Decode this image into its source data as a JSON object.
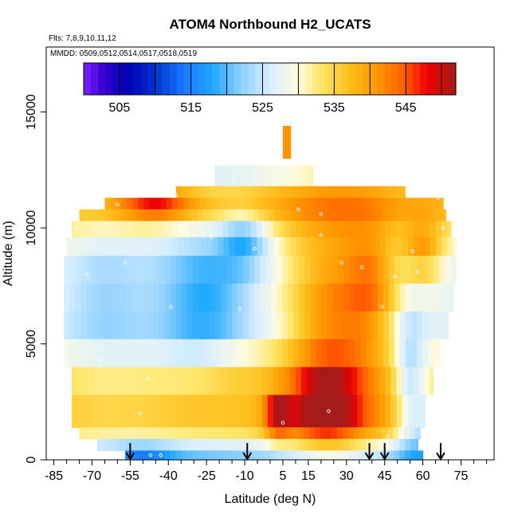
{
  "chart_data": {
    "type": "heatmap",
    "title": "ATOM4 Northbound H2_UCATS",
    "subtitle_flights": "Flts: 7,8,9,10,11,12",
    "subtitle_dates": "MMDD: 0509,0512,0514,0517,0518,0519",
    "xlabel": "Latitude (deg N)",
    "ylabel": "Altitude (m)",
    "xlim": [
      -88,
      88
    ],
    "ylim": [
      0,
      17800
    ],
    "x_ticks": [
      -85,
      -70,
      -55,
      -40,
      -25,
      -10,
      5,
      15,
      30,
      45,
      60,
      75
    ],
    "x_minor_ticks": [
      -80,
      -75,
      -65,
      -60,
      -50,
      -45,
      -35,
      -30,
      -20,
      -15,
      -5,
      0,
      10,
      20,
      25,
      35,
      40,
      50,
      55,
      65,
      70,
      80,
      85
    ],
    "y_ticks": [
      0,
      5000,
      10000,
      15000
    ],
    "colorbar": {
      "range": [
        500,
        552
      ],
      "ticks": [
        505,
        515,
        525,
        535,
        545
      ],
      "stops": [
        {
          "v": 500,
          "c": "#7f1fff"
        },
        {
          "v": 503,
          "c": "#3300cc"
        },
        {
          "v": 506,
          "c": "#0000b4"
        },
        {
          "v": 510,
          "c": "#0033cc"
        },
        {
          "v": 514,
          "c": "#1a78ff"
        },
        {
          "v": 518,
          "c": "#1fa8ff"
        },
        {
          "v": 522,
          "c": "#8cd0ff"
        },
        {
          "v": 526,
          "c": "#d8eeff"
        },
        {
          "v": 530,
          "c": "#fffbe0"
        },
        {
          "v": 533,
          "c": "#ffe76a"
        },
        {
          "v": 537,
          "c": "#ffbf1e"
        },
        {
          "v": 541,
          "c": "#ff9600"
        },
        {
          "v": 545,
          "c": "#ff5a00"
        },
        {
          "v": 548,
          "c": "#ee0000"
        },
        {
          "v": 552,
          "c": "#a51a1a"
        }
      ]
    },
    "field": {
      "description_rows": "altitude bands (m) with latitude extents and H2 values (ppb)",
      "rows": [
        {
          "alt": [
            13000,
            14400
          ],
          "lat": [
            5,
            8
          ],
          "base": 540
        },
        {
          "alt": [
            11700,
            12700
          ],
          "lat": [
            -22,
            17
          ],
          "base": 528
        },
        {
          "alt": [
            11200,
            11800
          ],
          "lat": [
            -37,
            53
          ],
          "base": 536
        },
        {
          "alt": [
            10800,
            11300
          ],
          "lat": [
            -65,
            68
          ],
          "base": 538
        },
        {
          "alt": [
            10300,
            10800
          ],
          "lat": [
            -75,
            69
          ],
          "base": 537
        },
        {
          "alt": [
            9600,
            10300
          ],
          "lat": [
            -78,
            71
          ],
          "base": 533
        },
        {
          "alt": [
            8800,
            9600
          ],
          "lat": [
            -80,
            73
          ],
          "base": 530
        },
        {
          "alt": [
            7600,
            8800
          ],
          "lat": [
            -81,
            73
          ],
          "base": 528
        },
        {
          "alt": [
            6400,
            7600
          ],
          "lat": [
            -81,
            72
          ],
          "base": 528
        },
        {
          "alt": [
            5200,
            6400
          ],
          "lat": [
            -81,
            70
          ],
          "base": 527
        },
        {
          "alt": [
            4000,
            5200
          ],
          "lat": [
            -81,
            67
          ],
          "base": 530
        },
        {
          "alt": [
            2800,
            4000
          ],
          "lat": [
            -78,
            64
          ],
          "base": 534
        },
        {
          "alt": [
            1400,
            2800
          ],
          "lat": [
            -78,
            61
          ],
          "base": 536
        },
        {
          "alt": [
            900,
            1400
          ],
          "lat": [
            -75,
            59
          ],
          "base": 533
        },
        {
          "alt": [
            400,
            900
          ],
          "lat": [
            -68,
            58
          ],
          "base": 527
        },
        {
          "alt": [
            0,
            400
          ],
          "lat": [
            -57,
            60
          ],
          "base": 522
        }
      ],
      "features": [
        {
          "lat": 25,
          "alt": 5500,
          "sx": 18,
          "sy": 5000,
          "amp": 13
        },
        {
          "lat": 20,
          "alt": 2300,
          "sx": 14,
          "sy": 1500,
          "amp": 11
        },
        {
          "lat": 3,
          "alt": 1800,
          "sx": 5,
          "sy": 900,
          "amp": 12
        },
        {
          "lat": 40,
          "alt": 7500,
          "sx": 10,
          "sy": 2500,
          "amp": 9
        },
        {
          "lat": 60,
          "alt": 9000,
          "sx": 8,
          "sy": 1200,
          "amp": 10
        },
        {
          "lat": -45,
          "alt": 11000,
          "sx": 15,
          "sy": 700,
          "amp": 12
        },
        {
          "lat": -25,
          "alt": 7000,
          "sx": 18,
          "sy": 3000,
          "amp": -9
        },
        {
          "lat": -10,
          "alt": 9500,
          "sx": 10,
          "sy": 1200,
          "amp": -10
        },
        {
          "lat": -65,
          "alt": 7000,
          "sx": 16,
          "sy": 2500,
          "amp": -4
        },
        {
          "lat": 55,
          "alt": 3000,
          "sx": 6,
          "sy": 3000,
          "amp": -10
        },
        {
          "lat": 62,
          "alt": 1500,
          "sx": 5,
          "sy": 1500,
          "amp": -8
        },
        {
          "lat": -50,
          "alt": 200,
          "sx": 12,
          "sy": 500,
          "amp": -6
        },
        {
          "lat": -15,
          "alt": 4000,
          "sx": 14,
          "sy": 1200,
          "amp": 3
        },
        {
          "lat": -30,
          "alt": 2500,
          "sx": 20,
          "sy": 1500,
          "amp": 2
        }
      ]
    },
    "arrows_lat": [
      -55,
      -9,
      39,
      45,
      67
    ],
    "sample_points": [
      {
        "lat": -51,
        "alt": 2000
      },
      {
        "lat": -48,
        "alt": 3500
      },
      {
        "lat": -39,
        "alt": 6600
      },
      {
        "lat": -57,
        "alt": 8500
      },
      {
        "lat": -36,
        "alt": 10000
      },
      {
        "lat": -23,
        "alt": 9600
      },
      {
        "lat": -12,
        "alt": 6500
      },
      {
        "lat": -6,
        "alt": 9100
      },
      {
        "lat": 4,
        "alt": 9500
      },
      {
        "lat": 11,
        "alt": 10800
      },
      {
        "lat": 20,
        "alt": 9700
      },
      {
        "lat": 28,
        "alt": 8500
      },
      {
        "lat": 36,
        "alt": 8300
      },
      {
        "lat": 44,
        "alt": 6600
      },
      {
        "lat": 49,
        "alt": 7900
      },
      {
        "lat": 56,
        "alt": 9000
      },
      {
        "lat": 58,
        "alt": 8100
      },
      {
        "lat": 64,
        "alt": 3800
      },
      {
        "lat": 60,
        "alt": 2900
      },
      {
        "lat": 66,
        "alt": 11300
      },
      {
        "lat": 68,
        "alt": 10000
      },
      {
        "lat": -67,
        "alt": 4300
      },
      {
        "lat": -76,
        "alt": 10000
      },
      {
        "lat": -72,
        "alt": 8000
      },
      {
        "lat": 23,
        "alt": 2100
      },
      {
        "lat": 7,
        "alt": 12700
      },
      {
        "lat": -37,
        "alt": 11400
      },
      {
        "lat": -60,
        "alt": 11000
      },
      {
        "lat": -14,
        "alt": 12100
      },
      {
        "lat": 20,
        "alt": 10600
      },
      {
        "lat": -47,
        "alt": 200
      },
      {
        "lat": -43,
        "alt": 200
      },
      {
        "lat": 28,
        "alt": 200
      },
      {
        "lat": 73,
        "alt": 9000
      },
      {
        "lat": 5,
        "alt": 1600
      },
      {
        "lat": 46,
        "alt": 1000
      }
    ]
  }
}
